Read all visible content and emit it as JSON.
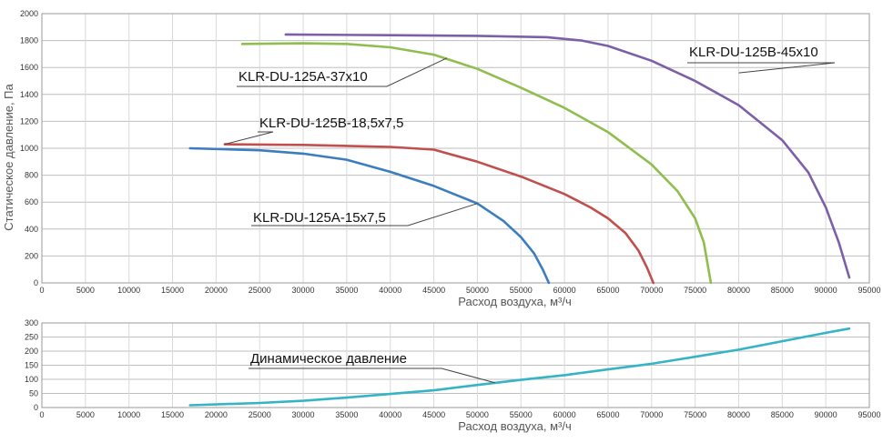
{
  "chart_data": [
    {
      "type": "line",
      "xlabel": "Расход воздуха, м³/ч",
      "ylabel": "Статическое давление, Па",
      "xlim": [
        0,
        95000
      ],
      "ylim": [
        0,
        2000
      ],
      "x_ticks": [
        0,
        5000,
        10000,
        15000,
        20000,
        25000,
        30000,
        35000,
        40000,
        45000,
        50000,
        55000,
        60000,
        65000,
        70000,
        75000,
        80000,
        85000,
        90000,
        95000
      ],
      "y_ticks": [
        0,
        200,
        400,
        600,
        800,
        1000,
        1200,
        1400,
        1600,
        1800,
        2000
      ],
      "grid": true,
      "series": [
        {
          "name": "KLR-DU-125A-15x7,5",
          "color": "#3b7dbf",
          "x": [
            17000,
            25000,
            30000,
            35000,
            40000,
            45000,
            50000,
            53000,
            55000,
            56500,
            57500,
            58200
          ],
          "y": [
            1000,
            985,
            960,
            915,
            825,
            720,
            590,
            460,
            340,
            220,
            100,
            0
          ]
        },
        {
          "name": "KLR-DU-125B-18,5x7,5",
          "color": "#c0504d",
          "x": [
            21000,
            30000,
            40000,
            45000,
            50000,
            55000,
            60000,
            63000,
            65000,
            67000,
            68500,
            69500,
            70200
          ],
          "y": [
            1030,
            1025,
            1010,
            990,
            900,
            790,
            660,
            560,
            480,
            370,
            240,
            110,
            0
          ]
        },
        {
          "name": "KLR-DU-125A-37x10",
          "color": "#8fbe4f",
          "x": [
            23000,
            30000,
            35000,
            40000,
            45000,
            50000,
            55000,
            60000,
            65000,
            70000,
            73000,
            75000,
            76000,
            76800
          ],
          "y": [
            1775,
            1780,
            1775,
            1750,
            1695,
            1590,
            1450,
            1300,
            1120,
            880,
            680,
            480,
            300,
            0
          ]
        },
        {
          "name": "KLR-DU-125B-45x10",
          "color": "#7d5fa8",
          "x": [
            28000,
            40000,
            50000,
            58000,
            62000,
            65000,
            70000,
            75000,
            80000,
            85000,
            88000,
            90000,
            91500,
            92700
          ],
          "y": [
            1845,
            1840,
            1835,
            1825,
            1800,
            1760,
            1650,
            1500,
            1320,
            1060,
            820,
            560,
            300,
            40
          ]
        }
      ],
      "annotations": [
        {
          "text": "KLR-DU-125A-15x7,5",
          "series": 0,
          "x": 50000,
          "y": 590
        },
        {
          "text": "KLR-DU-125B-18,5x7,5",
          "series": 1,
          "x": 21000,
          "y": 1030
        },
        {
          "text": "KLR-DU-125A-37x10",
          "series": 2,
          "x": 46500,
          "y": 1670
        },
        {
          "text": "KLR-DU-125B-45x10",
          "series": 3,
          "x": 80000,
          "y": 1560
        }
      ]
    },
    {
      "type": "line",
      "xlabel": "Расход воздуха, м³/ч",
      "ylabel": "",
      "xlim": [
        0,
        95000
      ],
      "ylim": [
        0,
        300
      ],
      "x_ticks": [
        0,
        5000,
        10000,
        15000,
        20000,
        25000,
        30000,
        35000,
        40000,
        45000,
        50000,
        55000,
        60000,
        65000,
        70000,
        75000,
        80000,
        85000,
        90000,
        95000
      ],
      "y_ticks": [
        0,
        50,
        100,
        150,
        200,
        250,
        300
      ],
      "grid": true,
      "series": [
        {
          "name": "Динамическое давление",
          "color": "#35b4c6",
          "x": [
            17000,
            25000,
            30000,
            35000,
            40000,
            45000,
            50000,
            55000,
            60000,
            65000,
            70000,
            75000,
            80000,
            85000,
            90000,
            92700
          ],
          "y": [
            8,
            16,
            24,
            35,
            48,
            61,
            80,
            98,
            115,
            135,
            155,
            180,
            205,
            235,
            265,
            280
          ]
        }
      ],
      "annotations": [
        {
          "text": "Динамическое давление",
          "series": 0,
          "x": 52000,
          "y": 88
        }
      ]
    }
  ]
}
